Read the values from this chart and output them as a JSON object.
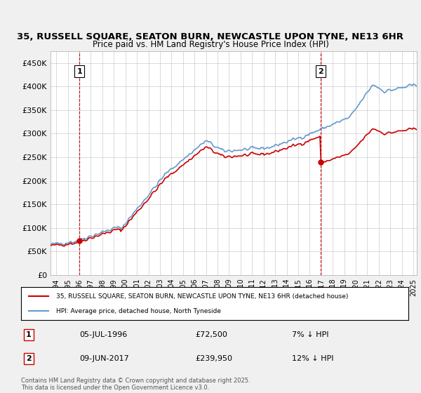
{
  "title_line1": "35, RUSSELL SQUARE, SEATON BURN, NEWCASTLE UPON TYNE, NE13 6HR",
  "title_line2": "Price paid vs. HM Land Registry's House Price Index (HPI)",
  "ylabel": "",
  "xlabel": "",
  "ylim": [
    0,
    475000
  ],
  "xlim_start": 1994.0,
  "xlim_end": 2025.8,
  "hpi_color": "#6699cc",
  "price_color": "#cc0000",
  "purchase1_date": 1996.51,
  "purchase1_price": 72500,
  "purchase2_date": 2017.44,
  "purchase2_price": 239950,
  "purchase1_label": "1",
  "purchase2_label": "2",
  "legend_property": "35, RUSSELL SQUARE, SEATON BURN, NEWCASTLE UPON TYNE, NE13 6HR (detached house)",
  "legend_hpi": "HPI: Average price, detached house, North Tyneside",
  "annotation1_date": "05-JUL-1996",
  "annotation1_price": "£72,500",
  "annotation1_pct": "7% ↓ HPI",
  "annotation2_date": "09-JUN-2017",
  "annotation2_price": "£239,950",
  "annotation2_pct": "12% ↓ HPI",
  "footer": "Contains HM Land Registry data © Crown copyright and database right 2025.\nThis data is licensed under the Open Government Licence v3.0.",
  "background_color": "#f0f0f0",
  "plot_bg_color": "#ffffff",
  "grid_color": "#cccccc",
  "ytick_labels": [
    "£0",
    "£50K",
    "£100K",
    "£150K",
    "£200K",
    "£250K",
    "£300K",
    "£350K",
    "£400K",
    "£450K"
  ],
  "ytick_values": [
    0,
    50000,
    100000,
    150000,
    200000,
    250000,
    300000,
    350000,
    400000,
    450000
  ]
}
